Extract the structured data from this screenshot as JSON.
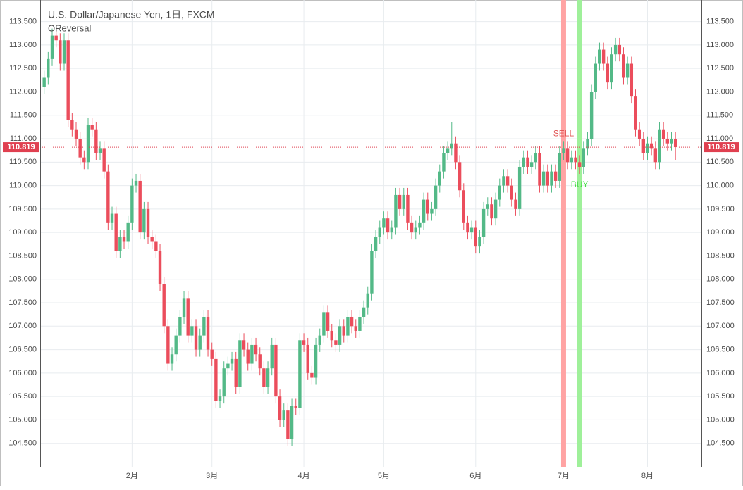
{
  "chart_data": {
    "type": "candlestick",
    "title": "U.S. Dollar/Japanese Yen, 1日, FXCM",
    "subtitle": "OReversal",
    "up_color": "#53b987",
    "down_color": "#eb4d5c",
    "grid": true,
    "ylim": [
      104.0,
      113.96
    ],
    "yticks": [
      {
        "value": 104.5,
        "label": "104.500"
      },
      {
        "value": 105,
        "label": "105.000"
      },
      {
        "value": 105.5,
        "label": "105.500"
      },
      {
        "value": 106,
        "label": "106.000"
      },
      {
        "value": 106.5,
        "label": "106.500"
      },
      {
        "value": 107,
        "label": "107.000"
      },
      {
        "value": 107.5,
        "label": "107.500"
      },
      {
        "value": 108,
        "label": "108.000"
      },
      {
        "value": 108.5,
        "label": "108.500"
      },
      {
        "value": 109,
        "label": "109.000"
      },
      {
        "value": 109.5,
        "label": "109.500"
      },
      {
        "value": 110,
        "label": "110.000"
      },
      {
        "value": 110.5,
        "label": "110.500"
      },
      {
        "value": 111,
        "label": "111.000"
      },
      {
        "value": 111.5,
        "label": "111.500"
      },
      {
        "value": 112,
        "label": "112.000"
      },
      {
        "value": 112.5,
        "label": "112.500"
      },
      {
        "value": 113,
        "label": "113.000"
      },
      {
        "value": 113.5,
        "label": "113.500"
      }
    ],
    "xlim": [
      -1,
      164.5
    ],
    "xticks": [
      {
        "value": 22,
        "label": "2月"
      },
      {
        "value": 42,
        "label": "3月"
      },
      {
        "value": 65,
        "label": "4月"
      },
      {
        "value": 85,
        "label": "5月"
      },
      {
        "value": 108,
        "label": "6月"
      },
      {
        "value": 130,
        "label": "7月"
      },
      {
        "value": 151,
        "label": "8月"
      }
    ],
    "last_price": {
      "value": 110.819,
      "label": "110.819",
      "color": "#e04050"
    },
    "signals": [
      {
        "label": "SELL",
        "index": 130,
        "color": "#ffa3a3",
        "text_color": "#e05050",
        "position": "above"
      },
      {
        "label": "BUY",
        "index": 134,
        "color": "#9ff09a",
        "text_color": "#44dd44",
        "position": "below"
      }
    ],
    "candles": [
      [
        112.1,
        112.45,
        111.95,
        112.3
      ],
      [
        112.3,
        112.85,
        112.15,
        112.7
      ],
      [
        112.7,
        113.35,
        112.55,
        113.2
      ],
      [
        113.2,
        113.35,
        112.95,
        113.1
      ],
      [
        113.1,
        113.25,
        112.45,
        112.6
      ],
      [
        112.6,
        113.25,
        112.45,
        113.1
      ],
      [
        113.1,
        113.25,
        111.25,
        111.4
      ],
      [
        111.4,
        111.55,
        111.05,
        111.2
      ],
      [
        111.2,
        111.35,
        110.85,
        111.0
      ],
      [
        111.0,
        111.15,
        110.45,
        110.6
      ],
      [
        110.6,
        110.75,
        110.35,
        110.5
      ],
      [
        110.5,
        111.45,
        110.35,
        111.3
      ],
      [
        111.3,
        111.45,
        111.05,
        111.2
      ],
      [
        111.2,
        111.35,
        110.55,
        110.7
      ],
      [
        110.7,
        110.95,
        110.55,
        110.8
      ],
      [
        110.8,
        110.95,
        110.15,
        110.3
      ],
      [
        110.3,
        110.45,
        109.05,
        109.2
      ],
      [
        109.2,
        109.55,
        109.05,
        109.4
      ],
      [
        109.4,
        109.55,
        108.45,
        108.6
      ],
      [
        108.6,
        109.05,
        108.45,
        108.9
      ],
      [
        108.9,
        109.05,
        108.65,
        108.8
      ],
      [
        108.8,
        109.35,
        108.65,
        109.2
      ],
      [
        109.2,
        110.15,
        109.05,
        110.0
      ],
      [
        110.0,
        110.25,
        109.85,
        110.1
      ],
      [
        110.1,
        110.25,
        108.85,
        109.0
      ],
      [
        109.0,
        109.65,
        108.85,
        109.5
      ],
      [
        109.5,
        109.65,
        108.75,
        108.9
      ],
      [
        108.9,
        109.05,
        108.65,
        108.8
      ],
      [
        108.8,
        108.95,
        108.45,
        108.6
      ],
      [
        108.6,
        108.75,
        107.75,
        107.9
      ],
      [
        107.9,
        108.05,
        106.85,
        107.0
      ],
      [
        107.0,
        107.15,
        106.05,
        106.2
      ],
      [
        106.2,
        106.55,
        106.05,
        106.4
      ],
      [
        106.4,
        106.95,
        106.25,
        106.8
      ],
      [
        106.8,
        107.35,
        106.65,
        107.2
      ],
      [
        107.2,
        107.75,
        107.05,
        107.6
      ],
      [
        107.6,
        107.75,
        106.65,
        106.8
      ],
      [
        106.8,
        107.15,
        106.65,
        107.0
      ],
      [
        107.0,
        107.15,
        106.35,
        106.5
      ],
      [
        106.5,
        106.95,
        106.35,
        106.8
      ],
      [
        106.8,
        107.35,
        106.65,
        107.2
      ],
      [
        107.2,
        107.35,
        106.35,
        106.5
      ],
      [
        106.5,
        106.65,
        106.15,
        106.3
      ],
      [
        106.3,
        106.45,
        105.25,
        105.4
      ],
      [
        105.4,
        105.65,
        105.25,
        105.5
      ],
      [
        105.5,
        106.25,
        105.35,
        106.1
      ],
      [
        106.1,
        106.35,
        105.95,
        106.2
      ],
      [
        106.2,
        106.45,
        106.05,
        106.3
      ],
      [
        106.3,
        106.45,
        105.55,
        105.7
      ],
      [
        105.7,
        106.85,
        105.55,
        106.7
      ],
      [
        106.7,
        106.85,
        106.35,
        106.5
      ],
      [
        106.5,
        106.65,
        106.05,
        106.2
      ],
      [
        106.2,
        106.75,
        106.05,
        106.6
      ],
      [
        106.6,
        106.75,
        106.25,
        106.4
      ],
      [
        106.4,
        106.55,
        105.95,
        106.1
      ],
      [
        106.1,
        106.25,
        105.55,
        105.7
      ],
      [
        105.7,
        106.25,
        105.55,
        106.1
      ],
      [
        106.1,
        106.75,
        105.95,
        106.6
      ],
      [
        106.6,
        106.75,
        105.35,
        105.5
      ],
      [
        105.5,
        105.65,
        104.85,
        105.0
      ],
      [
        105.0,
        105.35,
        104.85,
        105.2
      ],
      [
        105.2,
        105.35,
        104.45,
        104.6
      ],
      [
        104.6,
        105.45,
        104.45,
        105.3
      ],
      [
        105.3,
        105.45,
        105.1,
        105.25
      ],
      [
        105.25,
        106.85,
        105.1,
        106.7
      ],
      [
        106.7,
        106.85,
        106.45,
        106.6
      ],
      [
        106.6,
        106.75,
        105.85,
        106.0
      ],
      [
        106.0,
        106.15,
        105.75,
        105.9
      ],
      [
        105.9,
        106.75,
        105.75,
        106.6
      ],
      [
        106.6,
        106.95,
        106.45,
        106.8
      ],
      [
        106.8,
        107.45,
        106.65,
        107.3
      ],
      [
        107.3,
        107.45,
        106.75,
        106.9
      ],
      [
        106.9,
        107.05,
        106.55,
        106.7
      ],
      [
        106.7,
        106.85,
        106.45,
        106.6
      ],
      [
        106.6,
        107.15,
        106.45,
        107.0
      ],
      [
        107.0,
        107.15,
        106.65,
        106.8
      ],
      [
        106.8,
        107.35,
        106.65,
        107.2
      ],
      [
        107.2,
        107.35,
        106.85,
        107.0
      ],
      [
        107.0,
        107.15,
        106.75,
        106.9
      ],
      [
        106.9,
        107.35,
        106.75,
        107.2
      ],
      [
        107.2,
        107.55,
        107.05,
        107.4
      ],
      [
        107.4,
        107.85,
        107.25,
        107.7
      ],
      [
        107.7,
        108.75,
        107.55,
        108.6
      ],
      [
        108.6,
        109.05,
        108.45,
        108.9
      ],
      [
        108.9,
        109.25,
        108.75,
        109.1
      ],
      [
        109.1,
        109.45,
        108.95,
        109.3
      ],
      [
        109.3,
        109.45,
        108.85,
        109.0
      ],
      [
        109.0,
        109.25,
        108.85,
        109.1
      ],
      [
        109.1,
        109.95,
        108.95,
        109.8
      ],
      [
        109.8,
        109.95,
        109.35,
        109.5
      ],
      [
        109.5,
        109.95,
        109.35,
        109.8
      ],
      [
        109.8,
        109.95,
        109.05,
        109.2
      ],
      [
        109.2,
        109.35,
        108.85,
        109.0
      ],
      [
        109.0,
        109.25,
        108.85,
        109.1
      ],
      [
        109.1,
        109.35,
        108.95,
        109.2
      ],
      [
        109.2,
        109.85,
        109.05,
        109.7
      ],
      [
        109.7,
        109.85,
        109.25,
        109.4
      ],
      [
        109.4,
        109.65,
        109.25,
        109.5
      ],
      [
        109.5,
        110.15,
        109.35,
        110.0
      ],
      [
        110.0,
        110.45,
        109.85,
        110.3
      ],
      [
        110.3,
        110.85,
        110.15,
        110.7
      ],
      [
        110.7,
        110.95,
        110.55,
        110.8
      ],
      [
        110.8,
        111.35,
        110.65,
        110.9
      ],
      [
        110.9,
        111.05,
        110.35,
        110.5
      ],
      [
        110.5,
        110.65,
        109.75,
        109.9
      ],
      [
        109.9,
        110.05,
        109.05,
        109.2
      ],
      [
        109.2,
        109.35,
        108.85,
        109.0
      ],
      [
        109.0,
        109.25,
        108.85,
        109.1
      ],
      [
        109.1,
        109.25,
        108.55,
        108.7
      ],
      [
        108.7,
        109.05,
        108.55,
        108.9
      ],
      [
        108.9,
        109.65,
        108.75,
        109.5
      ],
      [
        109.5,
        109.75,
        109.35,
        109.6
      ],
      [
        109.6,
        109.75,
        109.15,
        109.3
      ],
      [
        109.3,
        109.85,
        109.15,
        109.7
      ],
      [
        109.7,
        110.15,
        109.55,
        110.0
      ],
      [
        110.0,
        110.35,
        109.85,
        110.2
      ],
      [
        110.2,
        110.35,
        109.85,
        110.0
      ],
      [
        110.0,
        110.15,
        109.55,
        109.7
      ],
      [
        109.7,
        109.85,
        109.35,
        109.5
      ],
      [
        109.5,
        110.55,
        109.35,
        110.4
      ],
      [
        110.4,
        110.75,
        110.25,
        110.6
      ],
      [
        110.6,
        110.75,
        110.25,
        110.4
      ],
      [
        110.4,
        110.65,
        110.25,
        110.5
      ],
      [
        110.5,
        110.85,
        110.35,
        110.7
      ],
      [
        110.7,
        110.85,
        109.85,
        110.0
      ],
      [
        110.0,
        110.45,
        109.85,
        110.3
      ],
      [
        110.3,
        110.45,
        109.85,
        110.0
      ],
      [
        110.0,
        110.45,
        109.85,
        110.3
      ],
      [
        110.3,
        110.45,
        109.95,
        110.1
      ],
      [
        110.1,
        110.85,
        109.95,
        110.7
      ],
      [
        110.7,
        110.95,
        110.55,
        110.8
      ],
      [
        110.8,
        110.95,
        110.35,
        110.5
      ],
      [
        110.5,
        110.75,
        110.35,
        110.6
      ],
      [
        110.6,
        110.75,
        110.35,
        110.5
      ],
      [
        110.5,
        110.65,
        110.25,
        110.4
      ],
      [
        110.4,
        110.95,
        110.25,
        110.8
      ],
      [
        110.8,
        111.15,
        110.65,
        111.0
      ],
      [
        111.0,
        112.15,
        110.85,
        112.0
      ],
      [
        112.0,
        112.75,
        111.85,
        112.6
      ],
      [
        112.6,
        113.05,
        112.45,
        112.9
      ],
      [
        112.9,
        113.05,
        112.45,
        112.6
      ],
      [
        112.6,
        112.75,
        112.05,
        112.2
      ],
      [
        112.2,
        112.95,
        112.05,
        112.8
      ],
      [
        112.8,
        113.15,
        112.65,
        113.0
      ],
      [
        113.0,
        113.15,
        112.65,
        112.8
      ],
      [
        112.8,
        112.95,
        112.15,
        112.3
      ],
      [
        112.3,
        112.75,
        112.15,
        112.6
      ],
      [
        112.6,
        112.75,
        111.75,
        111.9
      ],
      [
        111.9,
        112.05,
        111.05,
        111.2
      ],
      [
        111.2,
        111.35,
        110.85,
        111.0
      ],
      [
        111.0,
        111.15,
        110.55,
        110.7
      ],
      [
        110.7,
        111.05,
        110.55,
        110.9
      ],
      [
        110.9,
        111.05,
        110.65,
        110.8
      ],
      [
        110.8,
        110.95,
        110.35,
        110.5
      ],
      [
        110.5,
        111.35,
        110.35,
        111.2
      ],
      [
        111.2,
        111.35,
        110.85,
        111.0
      ],
      [
        111.0,
        111.15,
        110.75,
        110.9
      ],
      [
        110.9,
        111.15,
        110.75,
        111.0
      ],
      [
        111.0,
        111.15,
        110.55,
        110.819
      ]
    ]
  }
}
